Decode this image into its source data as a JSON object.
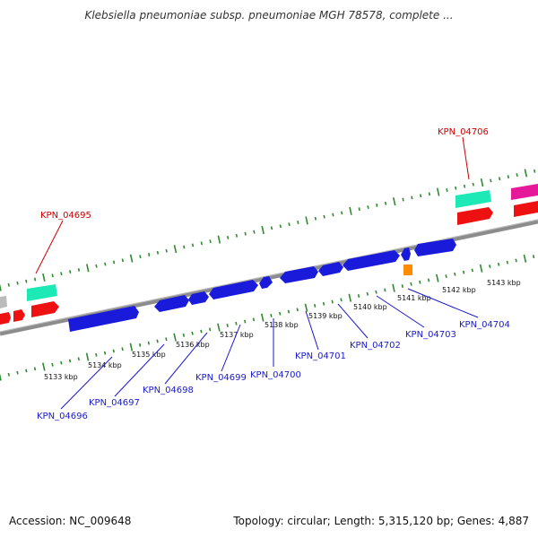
{
  "title": "Klebsiella pneumoniae subsp. pneumoniae MGH 78578, complete ...",
  "footer": {
    "accession": "Accession: NC_009648",
    "summary": "Topology: circular; Length: 5,315,120 bp; Genes: 4,887"
  },
  "colors": {
    "backbone": "#8c8c8c",
    "tick": "#2e8b2e",
    "forward_gene": "#1a1adb",
    "top_label": "#cc0000",
    "bottom_label": "#1a1acc",
    "teal": "#1de9b6",
    "red": "#ee1111",
    "magenta": "#e6199b",
    "orange": "#ff8c00",
    "gray": "#bbbbbb"
  },
  "scale_labels": [
    "5133 kbp",
    "5134 kbp",
    "5135 kbp",
    "5136 kbp",
    "5137 kbp",
    "5138 kbp",
    "5139 kbp",
    "5140 kbp",
    "5141 kbp",
    "5142 kbp",
    "5143 kbp"
  ],
  "gene_labels_top": [
    "KPN_04695",
    "KPN_04706"
  ],
  "gene_labels_bottom": [
    "KPN_04696",
    "KPN_04697",
    "KPN_04698",
    "KPN_04699",
    "KPN_04700",
    "KPN_04701",
    "KPN_04702",
    "KPN_04703",
    "KPN_04704"
  ]
}
